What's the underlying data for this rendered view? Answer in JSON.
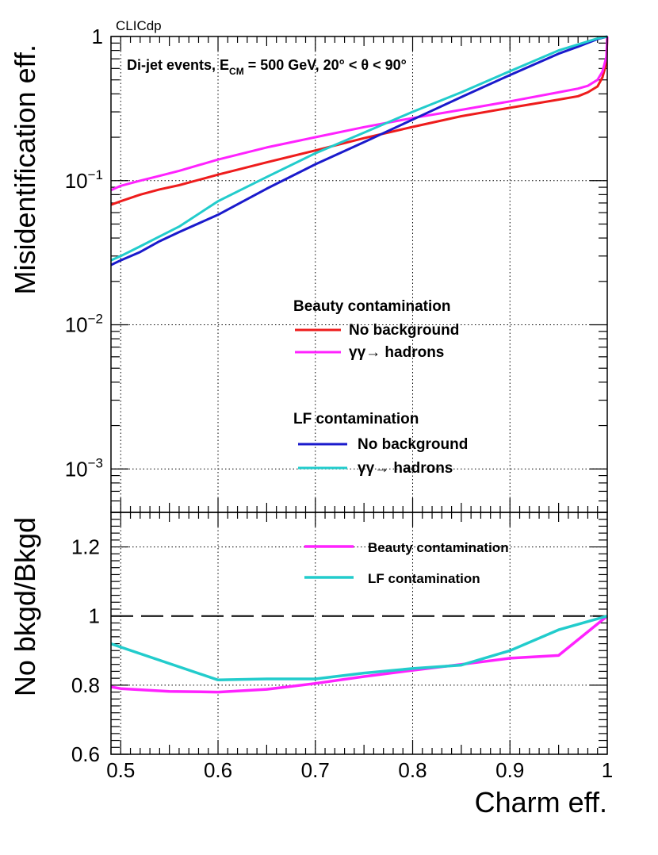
{
  "header": {
    "label": "CLICdp"
  },
  "chart_data": [
    {
      "type": "line",
      "panel": "top",
      "title": "Di-jet events, E_CM = 500 GeV, 20° < θ < 90°",
      "title_parts": {
        "pre": "Di-jet events, E",
        "sub": "CM",
        "post": " = 500 GeV, 20°  <  θ < 90°"
      },
      "ylabel": "Misidentification eff.",
      "yscale": "log",
      "ylim": [
        0.0005,
        1
      ],
      "xlim": [
        0.49,
        1.0
      ],
      "grid": true,
      "yticks": [
        {
          "value": 1,
          "base": "1",
          "exp": ""
        },
        {
          "value": 0.1,
          "base": "10",
          "exp": "−1"
        },
        {
          "value": 0.01,
          "base": "10",
          "exp": "−2"
        },
        {
          "value": 0.001,
          "base": "10",
          "exp": "−3"
        }
      ],
      "legend": {
        "groups": [
          {
            "title": "Beauty contamination",
            "entries": [
              "No background",
              "γγ→ hadrons"
            ]
          },
          {
            "title": "LF contamination",
            "entries": [
              "No background",
              "γγ→ hadrons"
            ]
          }
        ]
      },
      "series": [
        {
          "name": "Beauty contamination - No background",
          "color": "#ee1c1c",
          "x": [
            0.49,
            0.5,
            0.52,
            0.54,
            0.56,
            0.6,
            0.65,
            0.7,
            0.75,
            0.8,
            0.85,
            0.9,
            0.95,
            0.97,
            0.98,
            0.99,
            0.995,
            0.999,
            1.0
          ],
          "y": [
            0.068,
            0.072,
            0.08,
            0.087,
            0.093,
            0.11,
            0.134,
            0.162,
            0.197,
            0.236,
            0.28,
            0.32,
            0.365,
            0.385,
            0.41,
            0.45,
            0.52,
            0.65,
            1.0
          ]
        },
        {
          "name": "Beauty contamination - γγ→ hadrons",
          "color": "#ff22ff",
          "x": [
            0.49,
            0.5,
            0.52,
            0.54,
            0.56,
            0.6,
            0.65,
            0.7,
            0.75,
            0.8,
            0.85,
            0.9,
            0.95,
            0.97,
            0.98,
            0.99,
            0.995,
            0.999,
            1.0
          ],
          "y": [
            0.086,
            0.092,
            0.1,
            0.108,
            0.117,
            0.14,
            0.17,
            0.2,
            0.235,
            0.272,
            0.31,
            0.355,
            0.41,
            0.435,
            0.455,
            0.5,
            0.57,
            0.72,
            1.0
          ]
        },
        {
          "name": "LF contamination - No background",
          "color": "#1a1acc",
          "x": [
            0.49,
            0.5,
            0.52,
            0.54,
            0.56,
            0.6,
            0.65,
            0.7,
            0.75,
            0.8,
            0.85,
            0.9,
            0.95,
            0.97,
            0.99,
            1.0
          ],
          "y": [
            0.026,
            0.028,
            0.032,
            0.038,
            0.044,
            0.058,
            0.088,
            0.13,
            0.185,
            0.265,
            0.38,
            0.54,
            0.76,
            0.85,
            0.96,
            1.0
          ]
        },
        {
          "name": "LF contamination - γγ→ hadrons",
          "color": "#22cccc",
          "x": [
            0.49,
            0.5,
            0.52,
            0.54,
            0.56,
            0.6,
            0.65,
            0.7,
            0.75,
            0.8,
            0.85,
            0.9,
            0.95,
            0.97,
            0.99,
            1.0
          ],
          "y": [
            0.028,
            0.03,
            0.035,
            0.041,
            0.048,
            0.072,
            0.106,
            0.155,
            0.215,
            0.3,
            0.41,
            0.575,
            0.8,
            0.88,
            0.97,
            1.0
          ]
        }
      ]
    },
    {
      "type": "line",
      "panel": "bottom",
      "ylabel": "No bkgd/Bkgd",
      "xlabel": "Charm eff.",
      "ylim": [
        0.6,
        1.3
      ],
      "xlim": [
        0.49,
        1.0
      ],
      "grid": true,
      "reference_line": 1.0,
      "yticks": [
        0.6,
        0.8,
        1,
        1.2
      ],
      "ytick_labels": [
        "0.6",
        "0.8",
        "1",
        "1.2"
      ],
      "xticks": [
        0.5,
        0.6,
        0.7,
        0.8,
        0.9,
        1.0
      ],
      "xtick_labels": [
        "0.5",
        "0.6",
        "0.7",
        "0.8",
        "0.9",
        "1"
      ],
      "legend": {
        "entries": [
          "Beauty contamination",
          "LF contamination"
        ]
      },
      "series": [
        {
          "name": "Beauty contamination",
          "color": "#ff22ff",
          "x": [
            0.49,
            0.5,
            0.55,
            0.6,
            0.65,
            0.7,
            0.75,
            0.8,
            0.85,
            0.9,
            0.95,
            1.0
          ],
          "y": [
            0.795,
            0.79,
            0.782,
            0.78,
            0.788,
            0.805,
            0.825,
            0.843,
            0.86,
            0.878,
            0.886,
            1.0
          ]
        },
        {
          "name": "LF contamination",
          "color": "#22cccc",
          "x": [
            0.49,
            0.5,
            0.6,
            0.65,
            0.7,
            0.75,
            0.8,
            0.85,
            0.9,
            0.95,
            1.0
          ],
          "y": [
            0.92,
            0.91,
            0.815,
            0.818,
            0.818,
            0.835,
            0.848,
            0.858,
            0.9,
            0.96,
            1.0
          ]
        }
      ]
    }
  ]
}
